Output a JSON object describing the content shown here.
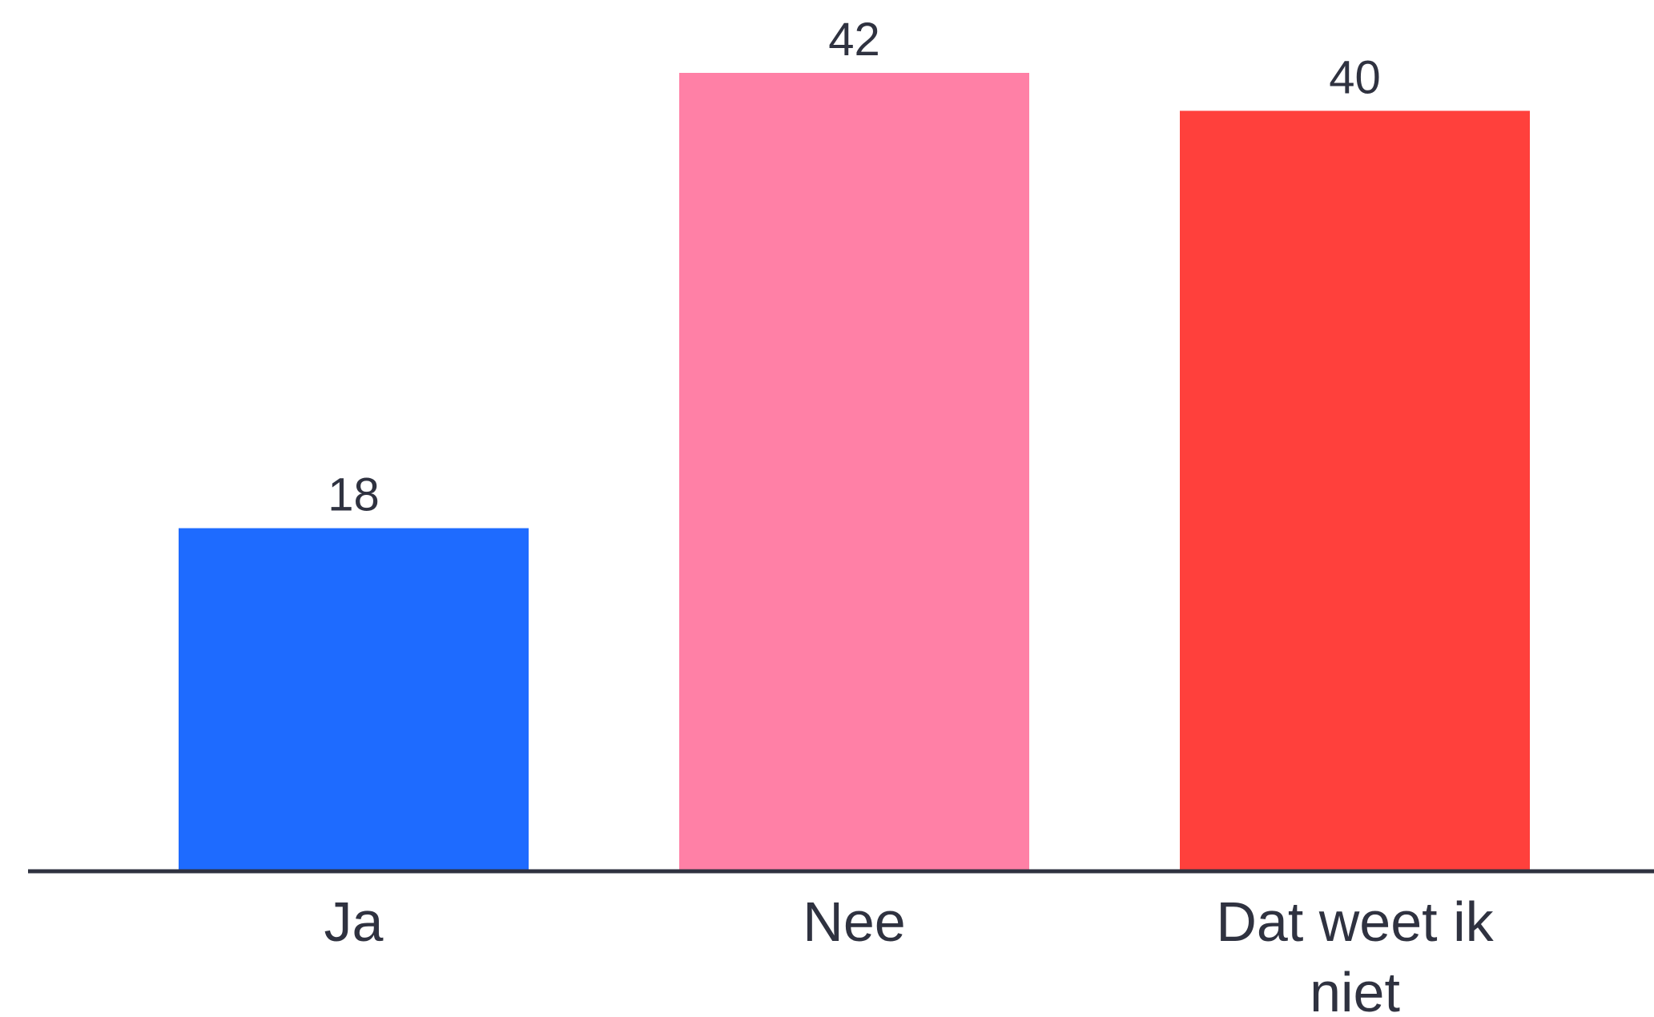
{
  "chart_data": {
    "type": "bar",
    "categories": [
      "Ja",
      "Nee",
      "Dat weet ik niet"
    ],
    "category_lines": [
      [
        "Ja"
      ],
      [
        "Nee"
      ],
      [
        "Dat weet ik",
        "niet"
      ]
    ],
    "values": [
      18,
      42,
      40
    ],
    "value_labels": [
      "18",
      "42",
      "40"
    ],
    "colors": [
      "#1e6bff",
      "#ff80a6",
      "#ff403c"
    ],
    "axis_color": "#2f3240",
    "title": "",
    "xlabel": "",
    "ylabel": "",
    "ylim": [
      0,
      42
    ],
    "grid": false,
    "legend": "none"
  }
}
